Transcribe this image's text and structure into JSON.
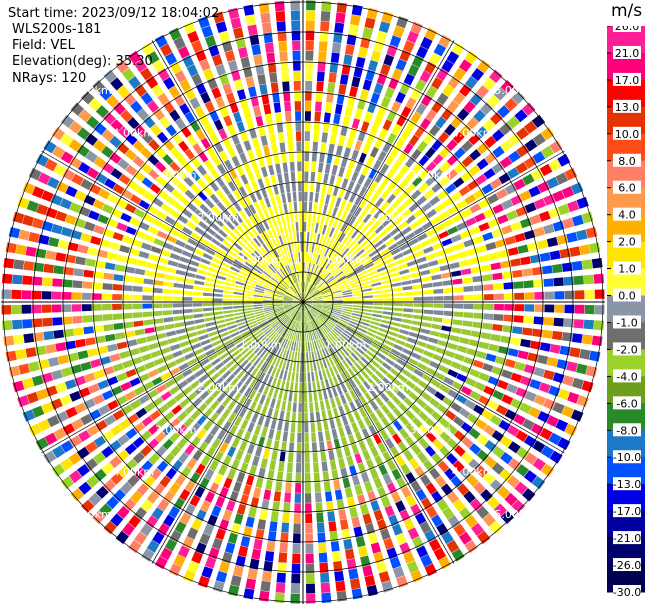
{
  "info": {
    "start_time": "Start time: 2023/09/12 18:04:02",
    "instrument": "WLS200s-181",
    "field": "Field: VEL",
    "elevation": "Elevation(deg): 35.30",
    "nrays": "NRays: 120"
  },
  "colorbar": {
    "unit": "m/s",
    "ticks": [
      "26.0",
      "21.0",
      "17.0",
      "13.0",
      "10.0",
      "8.0",
      "6.0",
      "4.0",
      "2.0",
      "1.0",
      "0.0",
      "-1.0",
      "-2.0",
      "-4.0",
      "-6.0",
      "-8.0",
      "-10.0",
      "-13.0",
      "-17.0",
      "-21.0",
      "-26.0",
      "-30.0"
    ],
    "colors": [
      "#ff1e96",
      "#ff007c",
      "#ff0000",
      "#e63200",
      "#ff4d1a",
      "#ff8066",
      "#ff9a4d",
      "#ffb000",
      "#ffe600",
      "#ffff33",
      "#8a96a6",
      "#6e6e6e",
      "#9ad22a",
      "#6e9e1e",
      "#2a8a2a",
      "#1e78c8",
      "#0050ff",
      "#0000e6",
      "#0000a0",
      "#00006e",
      "#000050"
    ]
  },
  "chart_data": {
    "type": "ppi",
    "field": "VEL",
    "units": "m/s",
    "elevation_deg": 35.3,
    "nrays": 120,
    "ring_labels": [
      "1.00km",
      "2.00km",
      "3.00km",
      "4.00km",
      "5.00km"
    ],
    "ring_ranges_km": [
      1,
      2,
      3,
      4,
      5
    ],
    "vmin": -30.0,
    "vmax": 30.0
  }
}
